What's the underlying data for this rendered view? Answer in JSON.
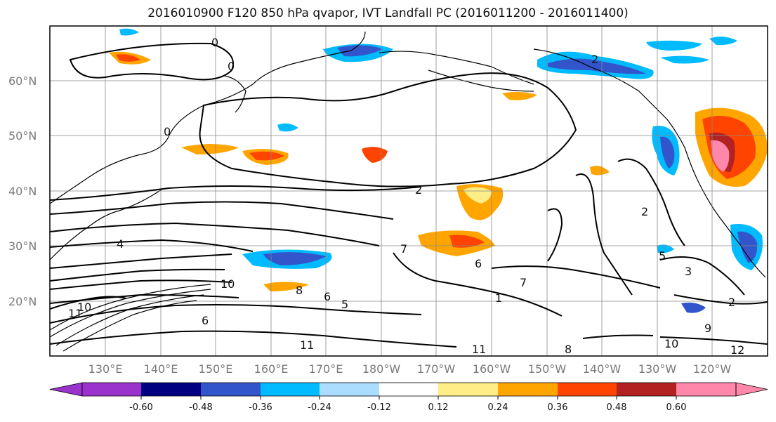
{
  "map": {
    "title": "2016010900 F120 850 hPa qvapor, IVT Landfall PC (2016011200 - 2016011400)",
    "lat_labels": [
      "60°N",
      "50°N",
      "40°N",
      "30°N",
      "20°N"
    ],
    "lon_labels": [
      "130°E",
      "140°E",
      "150°E",
      "160°E",
      "170°E",
      "180°W",
      "170°W",
      "160°W",
      "150°W",
      "140°W",
      "130°W",
      "120°W"
    ],
    "contour_labels": [
      "0",
      "0",
      "0",
      "2",
      "2",
      "2",
      "4",
      "5",
      "6",
      "6",
      "7",
      "7",
      "8",
      "8",
      "10",
      "10",
      "10",
      "11",
      "11",
      "11",
      "12",
      "3",
      "5",
      "6",
      "2",
      "9",
      "1"
    ]
  },
  "colorbar": {
    "tick_labels": [
      "-0.60",
      "-0.48",
      "-0.36",
      "-0.24",
      "-0.12",
      "0.12",
      "0.24",
      "0.36",
      "0.48",
      "0.60"
    ],
    "colors": [
      "#9933cc",
      "#000080",
      "#3355cc",
      "#00bbff",
      "#aaddff",
      "#ffffff",
      "#ffee88",
      "#ffa500",
      "#ff4400",
      "#b22222",
      "#ff88aa",
      "#ff88aa"
    ]
  }
}
